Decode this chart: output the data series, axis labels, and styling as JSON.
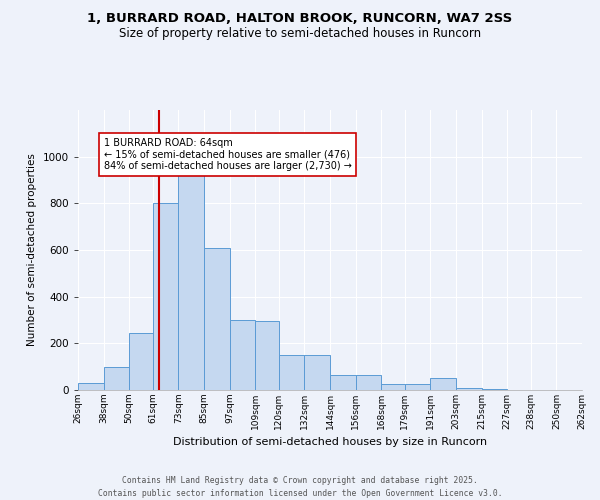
{
  "title_line1": "1, BURRARD ROAD, HALTON BROOK, RUNCORN, WA7 2SS",
  "title_line2": "Size of property relative to semi-detached houses in Runcorn",
  "xlabel": "Distribution of semi-detached houses by size in Runcorn",
  "ylabel": "Number of semi-detached properties",
  "bin_labels": [
    "26sqm",
    "38sqm",
    "50sqm",
    "61sqm",
    "73sqm",
    "85sqm",
    "97sqm",
    "109sqm",
    "120sqm",
    "132sqm",
    "144sqm",
    "156sqm",
    "168sqm",
    "179sqm",
    "191sqm",
    "203sqm",
    "215sqm",
    "227sqm",
    "238sqm",
    "250sqm",
    "262sqm"
  ],
  "bin_edges": [
    26,
    38,
    50,
    61,
    73,
    85,
    97,
    109,
    120,
    132,
    144,
    156,
    168,
    179,
    191,
    203,
    215,
    227,
    238,
    250,
    262
  ],
  "bar_heights": [
    30,
    100,
    245,
    800,
    930,
    610,
    300,
    295,
    150,
    150,
    65,
    65,
    25,
    25,
    50,
    10,
    3,
    2,
    2,
    1,
    2
  ],
  "bar_color": "#c5d8f0",
  "bar_edge_color": "#5b9bd5",
  "property_size": 64,
  "vline_color": "#cc0000",
  "annotation_text": "1 BURRARD ROAD: 64sqm\n← 15% of semi-detached houses are smaller (476)\n84% of semi-detached houses are larger (2,730) →",
  "annotation_box_color": "#ffffff",
  "annotation_box_edge": "#cc0000",
  "ylim": [
    0,
    1200
  ],
  "yticks": [
    0,
    200,
    400,
    600,
    800,
    1000
  ],
  "footer_line1": "Contains HM Land Registry data © Crown copyright and database right 2025.",
  "footer_line2": "Contains public sector information licensed under the Open Government Licence v3.0.",
  "background_color": "#eef2fa"
}
